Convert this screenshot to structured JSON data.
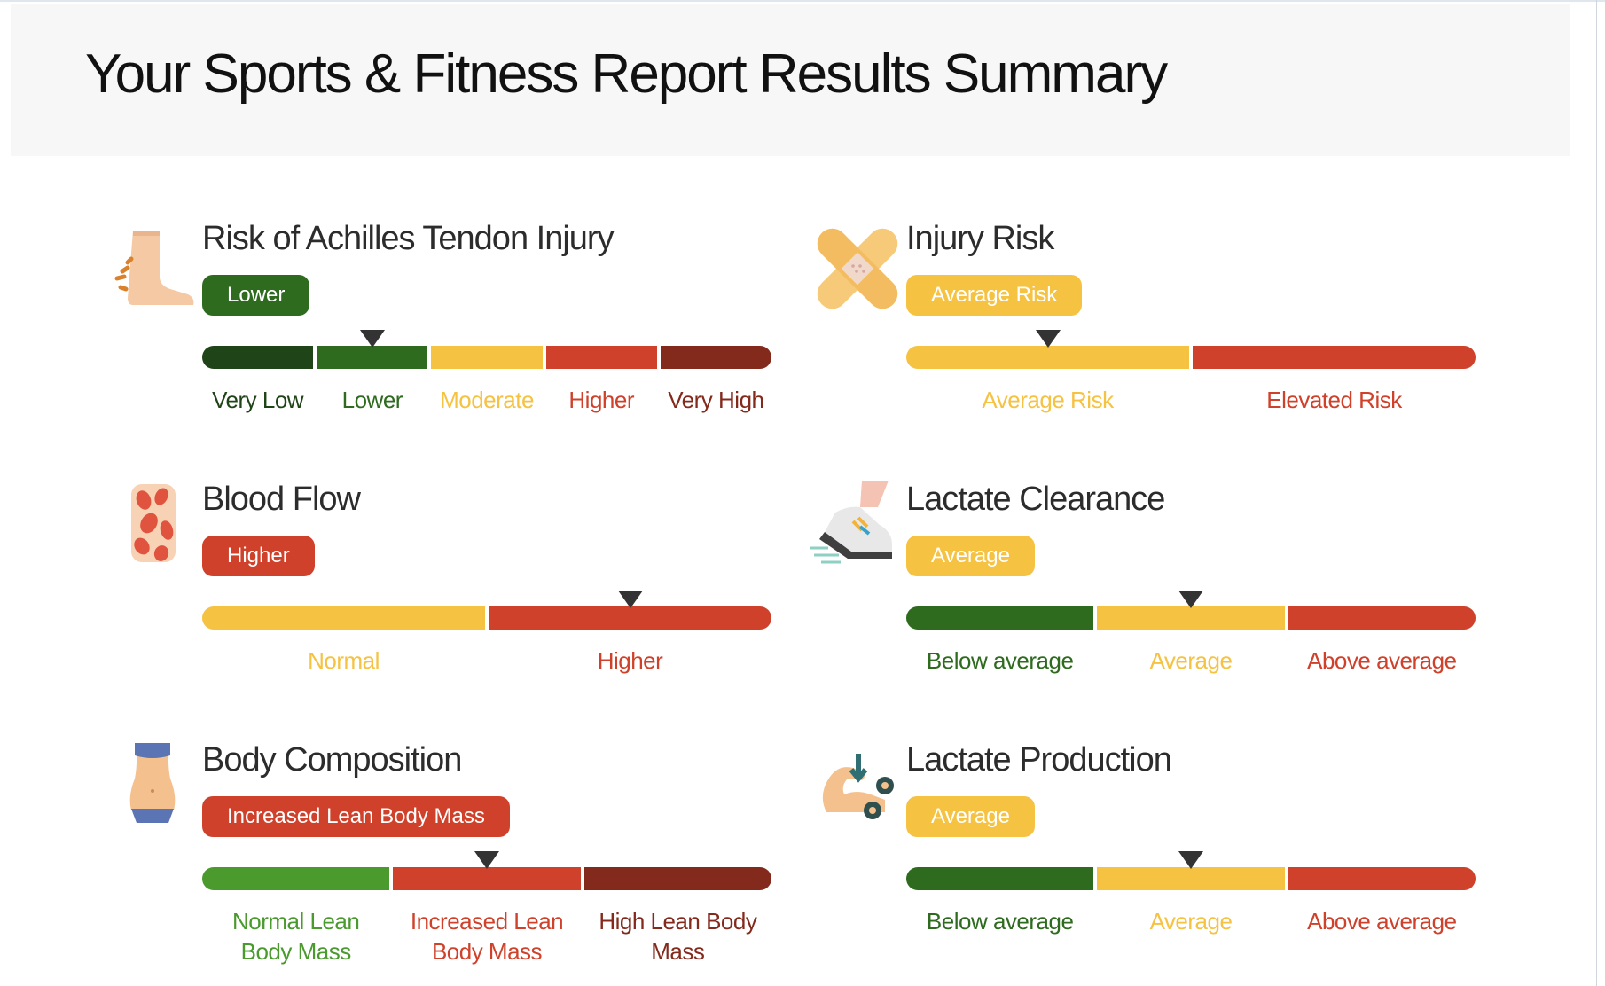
{
  "page": {
    "title": "Your Sports & Fitness Report Results Summary"
  },
  "colors": {
    "very_dark_green": "#1f4417",
    "dark_green": "#2e6b1f",
    "green": "#4a9a2e",
    "yellow": "#f5c242",
    "red": "#cf412a",
    "dark_red": "#832a1c"
  },
  "cards": [
    {
      "id": "achilles",
      "icon": "foot-injury-icon",
      "title": "Risk of Achilles Tendon Injury",
      "result": "Lower",
      "result_color": "#2e6b1f",
      "marker_index": 1,
      "segments": [
        {
          "label": "Very Low",
          "color": "#1f4417",
          "label_color": "#1f4417"
        },
        {
          "label": "Lower",
          "color": "#2e6b1f",
          "label_color": "#2e6b1f"
        },
        {
          "label": "Moderate",
          "color": "#f5c242",
          "label_color": "#f5c242"
        },
        {
          "label": "Higher",
          "color": "#cf412a",
          "label_color": "#cf412a"
        },
        {
          "label": "Very High",
          "color": "#832a1c",
          "label_color": "#832a1c"
        }
      ]
    },
    {
      "id": "injury",
      "icon": "bandage-icon",
      "title": "Injury Risk",
      "result": "Average Risk",
      "result_color": "#f5c242",
      "marker_index": 0,
      "segments": [
        {
          "label": "Average Risk",
          "color": "#f5c242",
          "label_color": "#f5c242"
        },
        {
          "label": "Elevated Risk",
          "color": "#cf412a",
          "label_color": "#cf412a"
        }
      ]
    },
    {
      "id": "bloodflow",
      "icon": "blood-cells-icon",
      "title": "Blood Flow",
      "result": "Higher",
      "result_color": "#cf412a",
      "marker_index": 1,
      "segments": [
        {
          "label": "Normal",
          "color": "#f5c242",
          "label_color": "#f5c242"
        },
        {
          "label": "Higher",
          "color": "#cf412a",
          "label_color": "#cf412a"
        }
      ]
    },
    {
      "id": "lactate_clearance",
      "icon": "running-shoe-icon",
      "title": "Lactate Clearance",
      "result": "Average",
      "result_color": "#f5c242",
      "marker_index": 1,
      "segments": [
        {
          "label": "Below average",
          "color": "#2e6b1f",
          "label_color": "#2e6b1f"
        },
        {
          "label": "Average",
          "color": "#f5c242",
          "label_color": "#f5c242"
        },
        {
          "label": "Above average",
          "color": "#cf412a",
          "label_color": "#cf412a"
        }
      ]
    },
    {
      "id": "body_composition",
      "icon": "torso-icon",
      "title": "Body Composition",
      "result": "Increased Lean Body Mass",
      "result_color": "#cf412a",
      "marker_index": 1,
      "segments": [
        {
          "label": "Normal Lean Body Mass",
          "lines": [
            "Normal Lean",
            "Body Mass"
          ],
          "color": "#4a9a2e",
          "label_color": "#4a9a2e"
        },
        {
          "label": "Increased Lean Body Mass",
          "lines": [
            "Increased Lean",
            "Body Mass"
          ],
          "color": "#cf412a",
          "label_color": "#cf412a"
        },
        {
          "label": "High Lean Body Mass",
          "lines": [
            "High Lean Body",
            "Mass"
          ],
          "color": "#832a1c",
          "label_color": "#832a1c"
        }
      ]
    },
    {
      "id": "lactate_production",
      "icon": "muscle-arm-icon",
      "title": "Lactate Production",
      "result": "Average",
      "result_color": "#f5c242",
      "marker_index": 1,
      "segments": [
        {
          "label": "Below average",
          "color": "#2e6b1f",
          "label_color": "#2e6b1f"
        },
        {
          "label": "Average",
          "color": "#f5c242",
          "label_color": "#f5c242"
        },
        {
          "label": "Above average",
          "color": "#cf412a",
          "label_color": "#cf412a"
        }
      ]
    }
  ]
}
